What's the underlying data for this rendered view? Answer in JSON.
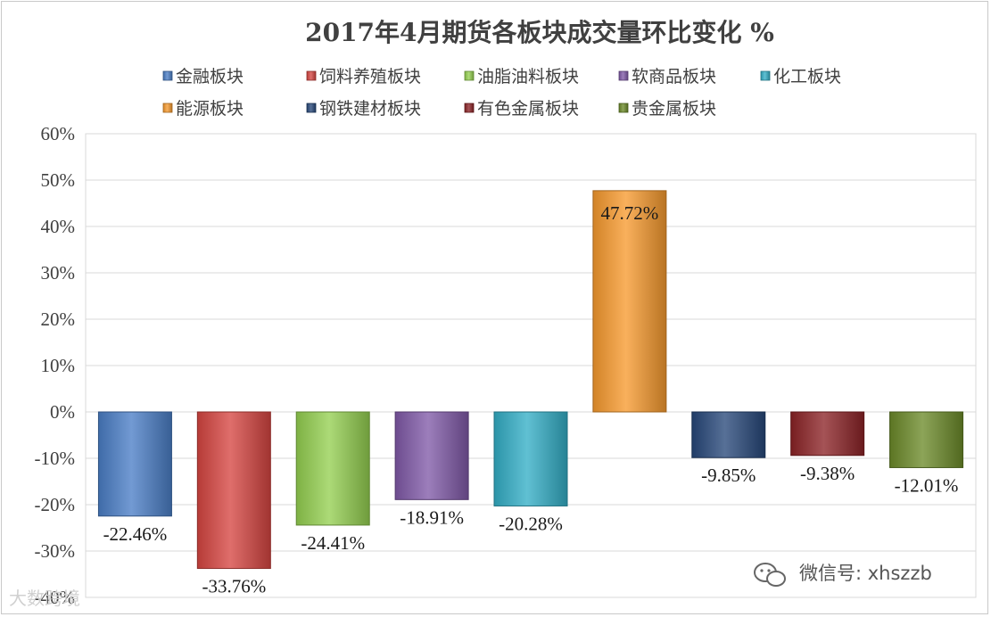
{
  "chart_data": {
    "type": "bar",
    "title": "2017年4月期货各板块成交量环比变化 %",
    "categories": [
      "金融板块",
      "饲料养殖板块",
      "油脂油料板块",
      "软商品板块",
      "化工板块",
      "能源板块",
      "钢铁建材板块",
      "有色金属板块",
      "贵金属板块"
    ],
    "values": [
      -22.46,
      -33.76,
      -24.41,
      -18.91,
      -20.28,
      47.72,
      -9.85,
      -9.38,
      -12.01
    ],
    "data_labels": [
      "-22.46%",
      "-33.76%",
      "-24.41%",
      "-18.91%",
      "-20.28%",
      "47.72%",
      "-9.85%",
      "-9.38%",
      "-12.01%"
    ],
    "colors": [
      "#4a7ec6",
      "#d64541",
      "#94d050",
      "#8059a8",
      "#33aec6",
      "#f79a2e",
      "#27487a",
      "#8c2326",
      "#6c8a29"
    ],
    "ylim": [
      -40,
      60
    ],
    "ytick_values": [
      60,
      50,
      40,
      30,
      20,
      10,
      0,
      -10,
      -20,
      -30,
      -40
    ],
    "ytick_labels": [
      "60%",
      "50%",
      "40%",
      "30%",
      "20%",
      "10%",
      "0%",
      "-10%",
      "-20%",
      "-30%",
      "-40%"
    ],
    "xlabel": "",
    "ylabel": "",
    "grid": true,
    "legend_position": "top"
  },
  "watermarks": {
    "wechat": "微信号: xhszzb",
    "source": "大数跨境"
  }
}
